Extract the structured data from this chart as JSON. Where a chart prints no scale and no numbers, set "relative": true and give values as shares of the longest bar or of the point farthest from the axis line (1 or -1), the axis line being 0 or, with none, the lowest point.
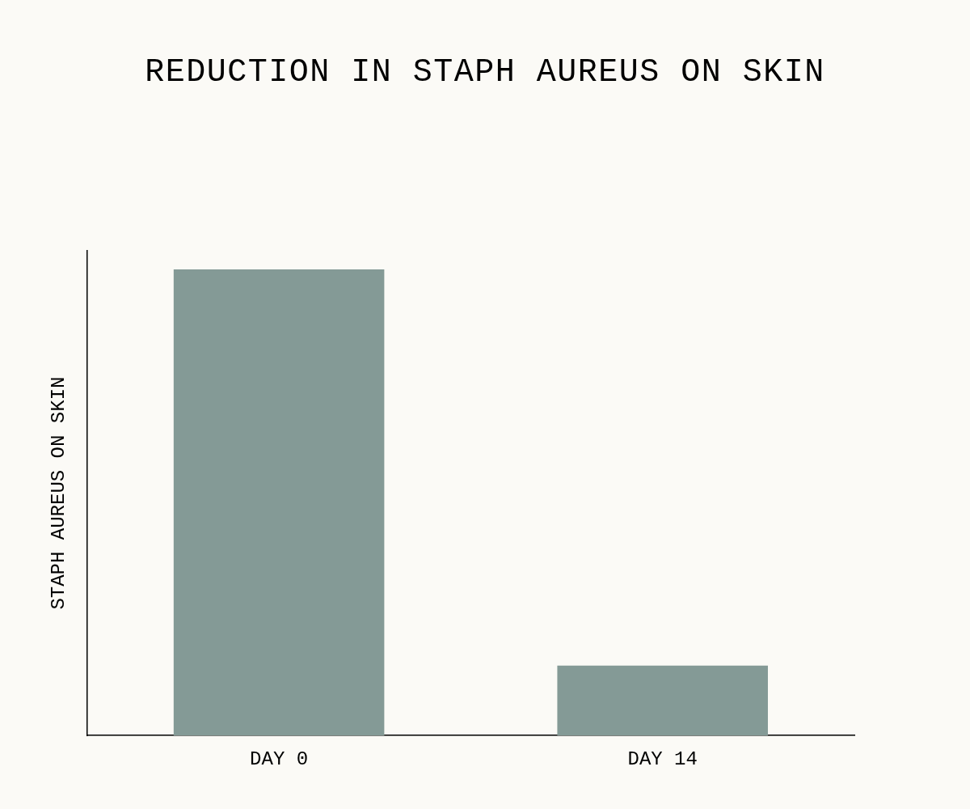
{
  "chart_data": {
    "type": "bar",
    "title": "REDUCTION IN STAPH AUREUS ON SKIN",
    "ylabel": "STAPH AUREUS ON SKIN",
    "categories": [
      "DAY 0",
      "DAY 14"
    ],
    "values": [
      1,
      0.15
    ],
    "color": "#849a96",
    "relative": true
  }
}
